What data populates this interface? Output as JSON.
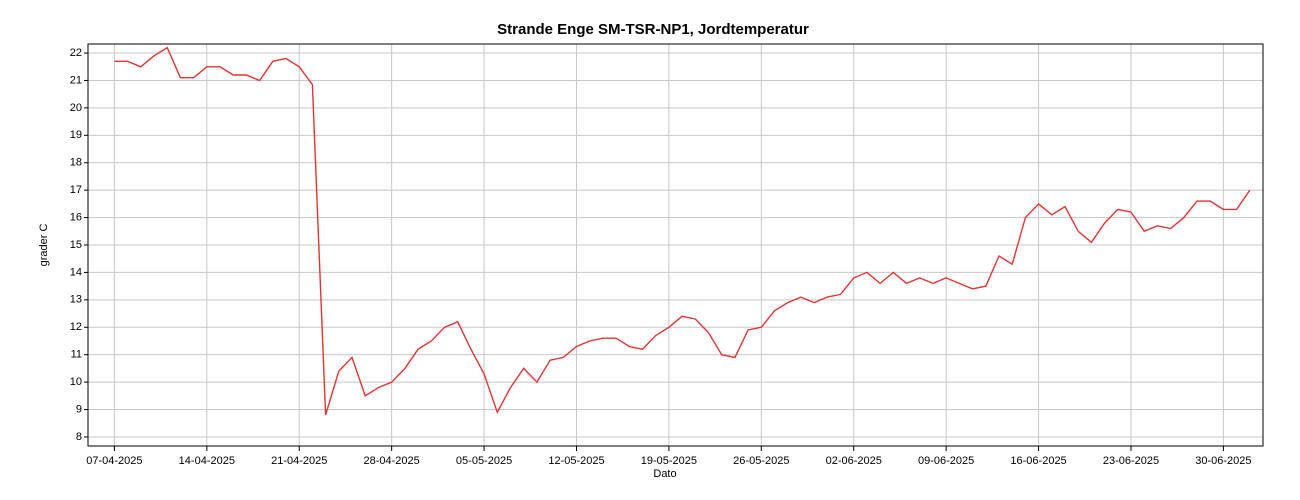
{
  "chart_data": {
    "type": "line",
    "title": "Strande Enge SM-TSR-NP1, Jordtemperatur",
    "x_label": "Dato",
    "y_label": "grader C",
    "x": [
      "2025-04-07",
      "2025-04-08",
      "2025-04-09",
      "2025-04-10",
      "2025-04-11",
      "2025-04-12",
      "2025-04-13",
      "2025-04-14",
      "2025-04-15",
      "2025-04-16",
      "2025-04-17",
      "2025-04-18",
      "2025-04-19",
      "2025-04-20",
      "2025-04-21",
      "2025-04-22",
      "2025-04-23",
      "2025-04-24",
      "2025-04-25",
      "2025-04-26",
      "2025-04-27",
      "2025-04-28",
      "2025-04-29",
      "2025-04-30",
      "2025-05-01",
      "2025-05-02",
      "2025-05-03",
      "2025-05-04",
      "2025-05-05",
      "2025-05-06",
      "2025-05-07",
      "2025-05-08",
      "2025-05-09",
      "2025-05-10",
      "2025-05-11",
      "2025-05-12",
      "2025-05-13",
      "2025-05-14",
      "2025-05-15",
      "2025-05-16",
      "2025-05-17",
      "2025-05-18",
      "2025-05-19",
      "2025-05-20",
      "2025-05-21",
      "2025-05-22",
      "2025-05-23",
      "2025-05-24",
      "2025-05-25",
      "2025-05-26",
      "2025-05-27",
      "2025-05-28",
      "2025-05-29",
      "2025-05-30",
      "2025-05-31",
      "2025-06-01",
      "2025-06-02",
      "2025-06-03",
      "2025-06-04",
      "2025-06-05",
      "2025-06-06",
      "2025-06-07",
      "2025-06-08",
      "2025-06-09",
      "2025-06-10",
      "2025-06-11",
      "2025-06-12",
      "2025-06-13",
      "2025-06-14",
      "2025-06-15",
      "2025-06-16",
      "2025-06-17",
      "2025-06-18",
      "2025-06-19",
      "2025-06-20",
      "2025-06-21",
      "2025-06-22",
      "2025-06-23",
      "2025-06-24",
      "2025-06-25",
      "2025-06-26",
      "2025-06-27",
      "2025-06-28",
      "2025-06-29",
      "2025-06-30",
      "2025-07-01",
      "2025-07-02"
    ],
    "series": [
      {
        "name": "Jordtemperatur",
        "color": "#e03434",
        "values": [
          21.7,
          21.7,
          21.5,
          21.9,
          22.2,
          21.1,
          21.1,
          21.5,
          21.5,
          21.2,
          21.2,
          21.0,
          21.7,
          21.8,
          21.5,
          20.85,
          8.8,
          10.4,
          10.9,
          9.5,
          9.8,
          10.0,
          10.5,
          11.2,
          11.5,
          12.0,
          12.2,
          11.2,
          10.3,
          8.9,
          9.8,
          10.5,
          10.0,
          10.8,
          10.9,
          11.3,
          11.5,
          11.6,
          11.6,
          11.3,
          11.2,
          11.7,
          12.0,
          12.4,
          12.3,
          11.8,
          11.0,
          10.9,
          11.9,
          12.0,
          12.6,
          12.9,
          13.1,
          12.9,
          13.1,
          13.2,
          13.8,
          14.0,
          13.6,
          14.0,
          13.6,
          13.8,
          13.6,
          13.8,
          13.6,
          13.4,
          13.5,
          14.6,
          14.3,
          16.0,
          16.5,
          16.1,
          16.4,
          15.5,
          15.1,
          15.8,
          16.3,
          16.2,
          15.5,
          15.7,
          15.6,
          16.0,
          16.6,
          16.6,
          16.3,
          16.3,
          17.0
        ]
      }
    ],
    "xlim": [
      "2025-04-05",
      "2025-07-03"
    ],
    "xticks": [
      {
        "value": "2025-04-07",
        "label": "07-04-2025"
      },
      {
        "value": "2025-04-14",
        "label": "14-04-2025"
      },
      {
        "value": "2025-04-21",
        "label": "21-04-2025"
      },
      {
        "value": "2025-04-28",
        "label": "28-04-2025"
      },
      {
        "value": "2025-05-05",
        "label": "05-05-2025"
      },
      {
        "value": "2025-05-12",
        "label": "12-05-2025"
      },
      {
        "value": "2025-05-19",
        "label": "19-05-2025"
      },
      {
        "value": "2025-05-26",
        "label": "26-05-2025"
      },
      {
        "value": "2025-06-02",
        "label": "02-06-2025"
      },
      {
        "value": "2025-06-09",
        "label": "09-06-2025"
      },
      {
        "value": "2025-06-16",
        "label": "16-06-2025"
      },
      {
        "value": "2025-06-23",
        "label": "23-06-2025"
      },
      {
        "value": "2025-06-30",
        "label": "30-06-2025"
      }
    ],
    "ylim": [
      7.67,
      22.33
    ],
    "yticks": [
      8,
      9,
      10,
      11,
      12,
      13,
      14,
      15,
      16,
      17,
      18,
      19,
      20,
      21,
      22
    ],
    "grid": true
  }
}
